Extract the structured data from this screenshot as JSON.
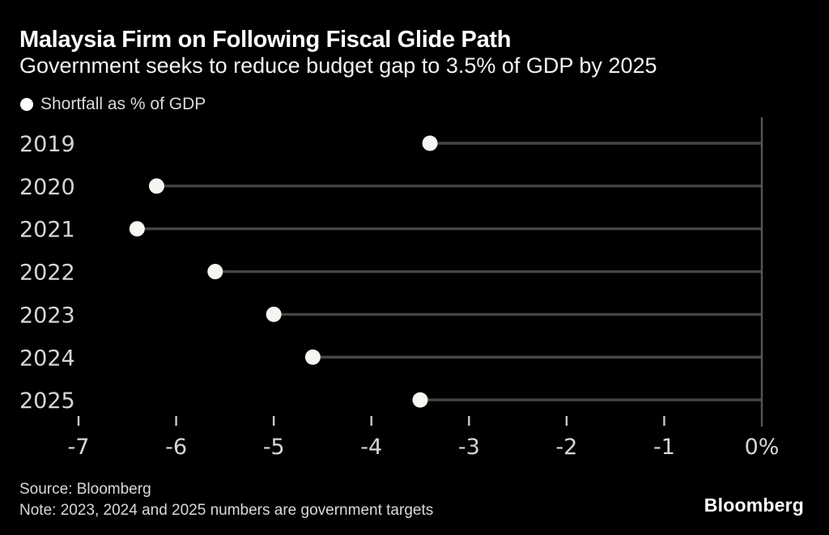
{
  "chart_data": {
    "type": "scatter",
    "variant": "horizontal-lollipop",
    "title": "Malaysia Firm on Following Fiscal Glide Path",
    "subtitle": "Government seeks to reduce budget gap to 3.5% of GDP by 2025",
    "legend": [
      "Shortfall as % of GDP"
    ],
    "legend_position": "top-left",
    "categories": [
      "2019",
      "2020",
      "2021",
      "2022",
      "2023",
      "2024",
      "2025"
    ],
    "series": [
      {
        "name": "Shortfall as % of GDP",
        "values": [
          -3.4,
          -6.2,
          -6.4,
          -5.6,
          -5.0,
          -4.6,
          -3.5
        ]
      }
    ],
    "baseline": 0,
    "xlim": [
      -7.8,
      0
    ],
    "x_ticks": [
      -7,
      -6,
      -5,
      -4,
      -3,
      -2,
      -1,
      0
    ],
    "x_tick_labels": [
      "-7",
      "-6",
      "-5",
      "-4",
      "-3",
      "-2",
      "-1",
      "0%"
    ],
    "xlabel": "",
    "ylabel": "",
    "grid": false,
    "source": "Source: Bloomberg",
    "note": "Note: 2023, 2024 and 2025 numbers are government targets"
  },
  "brand": {
    "logo_text": "Bloomberg"
  },
  "colors": {
    "background": "#000000",
    "title": "#ffffff",
    "subtitle": "#f2f2f2",
    "muted_text": "#d9d9d9",
    "axis_label": "#d6d6d6",
    "dot_fill": "#f7f5f2",
    "legend_dot": "#ffffff",
    "stem_line": "#454545",
    "axis_line": "#565656",
    "tick_mark": "#c8c8c8"
  }
}
